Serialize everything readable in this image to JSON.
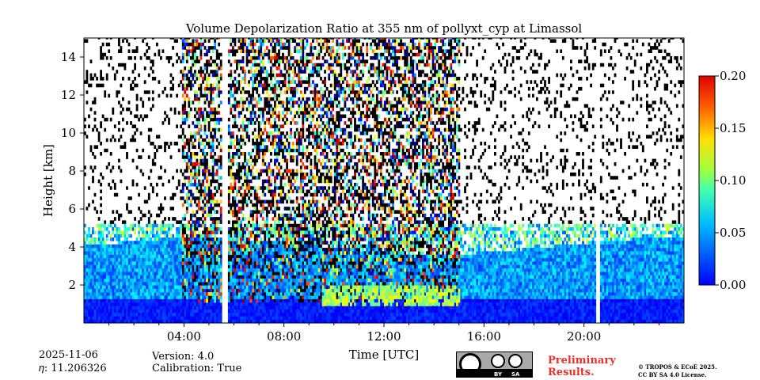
{
  "chart_data": {
    "type": "heatmap",
    "title": "Volume Depolarization Ratio at 355 nm of pollyxt_cyp at Limassol",
    "xlabel": "Time [UTC]",
    "ylabel": "Height [km]",
    "xlim": [
      0,
      24
    ],
    "ylim": [
      0,
      15
    ],
    "x_ticks": [
      {
        "value": 4,
        "label": "04:00"
      },
      {
        "value": 8,
        "label": "08:00"
      },
      {
        "value": 12,
        "label": "12:00"
      },
      {
        "value": 16,
        "label": "16:00"
      },
      {
        "value": 20,
        "label": "20:00"
      }
    ],
    "y_ticks": [
      {
        "value": 2,
        "label": "2"
      },
      {
        "value": 4,
        "label": "4"
      },
      {
        "value": 6,
        "label": "6"
      },
      {
        "value": 8,
        "label": "8"
      },
      {
        "value": 10,
        "label": "10"
      },
      {
        "value": 12,
        "label": "12"
      },
      {
        "value": 14,
        "label": "14"
      }
    ],
    "colorbar": {
      "range": [
        0.0,
        0.2
      ],
      "ticks": [
        {
          "value": 0.0,
          "label": "0.00"
        },
        {
          "value": 0.05,
          "label": "0.05"
        },
        {
          "value": 0.1,
          "label": "0.10"
        },
        {
          "value": 0.15,
          "label": "0.15"
        },
        {
          "value": 0.2,
          "label": "0.20"
        }
      ],
      "colormap": "jet"
    },
    "data_gaps_utc": [
      [
        5.55,
        5.75
      ],
      [
        20.45,
        20.6
      ]
    ],
    "noisy_daytime_utc": [
      3.9,
      15.0
    ],
    "aerosol_layer_top_km": 5.2,
    "regions": [
      {
        "name": "boundary layer",
        "x": [
          0,
          24
        ],
        "y": [
          0,
          1.5
        ],
        "value": 0.03
      },
      {
        "name": "elevated aerosol layer",
        "x": [
          0,
          24
        ],
        "y": [
          1.5,
          4.5
        ],
        "value": 0.06
      },
      {
        "name": "depolarizing layer",
        "x": [
          9.5,
          15
        ],
        "y": [
          0.8,
          2.2
        ],
        "value": 0.1
      }
    ]
  },
  "footer": {
    "date": "2025-11-06",
    "eta": "𝜂: 11.206326",
    "version": "Version: 4.0",
    "calibration": "Calibration: True",
    "license_by": "BY",
    "license_sa": "SA",
    "preliminary_line1": "Preliminary",
    "preliminary_line2": "Results.",
    "copyright_line1": "© TROPOS & ECoE 2025.",
    "copyright_line2": "CC BY SA 4.0 License."
  }
}
